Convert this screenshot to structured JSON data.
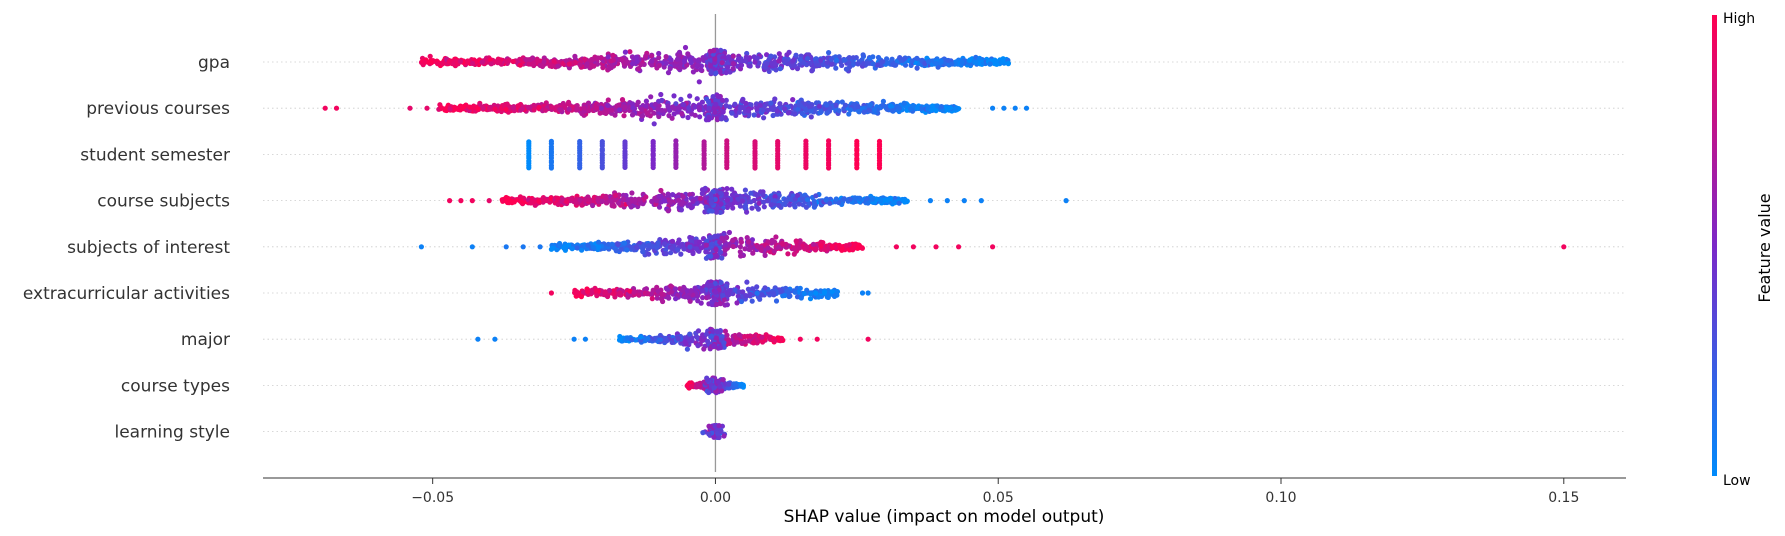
{
  "chart_data": {
    "type": "scatter",
    "subtype": "shap-beeswarm",
    "title": "",
    "xlabel": "SHAP value (impact on model output)",
    "ylabel": "",
    "xlim": [
      -0.08,
      0.161
    ],
    "x_ticks": [
      -0.05,
      0.0,
      0.05,
      0.1,
      0.15
    ],
    "x_tick_labels": [
      "−0.05",
      "0.00",
      "0.05",
      "0.10",
      "0.15"
    ],
    "features": [
      {
        "name": "gpa",
        "range": [
          -0.052,
          0.052
        ],
        "pattern": "high-left",
        "outliers": []
      },
      {
        "name": "previous courses",
        "range": [
          -0.049,
          0.043
        ],
        "pattern": "high-left",
        "outliers": [
          [
            -0.069,
            0.95
          ],
          [
            -0.067,
            0.95
          ],
          [
            -0.054,
            0.9
          ],
          [
            -0.051,
            0.9
          ],
          [
            0.049,
            0.05
          ],
          [
            0.051,
            0.05
          ],
          [
            0.053,
            0.05
          ],
          [
            0.055,
            0.05
          ]
        ]
      },
      {
        "name": "student semester",
        "range": [
          -0.033,
          0.029
        ],
        "pattern": "discrete",
        "levels": [
          [
            -0.033,
            0.0
          ],
          [
            -0.029,
            0.1
          ],
          [
            -0.024,
            0.2
          ],
          [
            -0.02,
            0.3
          ],
          [
            -0.016,
            0.4
          ],
          [
            -0.011,
            0.5
          ],
          [
            -0.007,
            0.6
          ],
          [
            -0.002,
            0.7
          ],
          [
            0.002,
            0.8
          ],
          [
            0.007,
            0.85
          ],
          [
            0.011,
            0.9
          ],
          [
            0.016,
            0.93
          ],
          [
            0.02,
            0.96
          ],
          [
            0.025,
            1.0
          ],
          [
            0.029,
            1.0
          ]
        ],
        "outliers": []
      },
      {
        "name": "course subjects",
        "range": [
          -0.038,
          0.034
        ],
        "pattern": "high-left",
        "outliers": [
          [
            -0.047,
            0.95
          ],
          [
            -0.045,
            0.95
          ],
          [
            -0.043,
            0.95
          ],
          [
            -0.04,
            0.9
          ],
          [
            0.038,
            0.05
          ],
          [
            0.041,
            0.05
          ],
          [
            0.044,
            0.05
          ],
          [
            0.047,
            0.05
          ],
          [
            0.062,
            0.05
          ]
        ]
      },
      {
        "name": "subjects of interest",
        "range": [
          -0.029,
          0.026
        ],
        "pattern": "high-right",
        "outliers": [
          [
            -0.052,
            0.05
          ],
          [
            -0.043,
            0.05
          ],
          [
            -0.037,
            0.1
          ],
          [
            -0.034,
            0.1
          ],
          [
            -0.031,
            0.1
          ],
          [
            0.032,
            0.95
          ],
          [
            0.035,
            0.95
          ],
          [
            0.039,
            0.95
          ],
          [
            0.043,
            0.95
          ],
          [
            0.049,
            0.95
          ],
          [
            0.15,
            0.95
          ]
        ]
      },
      {
        "name": "extracurricular activities",
        "range": [
          -0.025,
          0.022
        ],
        "pattern": "high-left",
        "outliers": [
          [
            -0.029,
            0.95
          ],
          [
            0.026,
            0.05
          ],
          [
            0.027,
            0.05
          ]
        ]
      },
      {
        "name": "major",
        "range": [
          -0.017,
          0.012
        ],
        "pattern": "high-right",
        "outliers": [
          [
            -0.042,
            0.05
          ],
          [
            -0.039,
            0.05
          ],
          [
            -0.025,
            0.05
          ],
          [
            -0.023,
            0.05
          ],
          [
            0.015,
            0.95
          ],
          [
            0.018,
            0.95
          ],
          [
            0.027,
            0.95
          ]
        ]
      },
      {
        "name": "course types",
        "range": [
          -0.005,
          0.005
        ],
        "pattern": "high-left",
        "outliers": []
      },
      {
        "name": "learning style",
        "range": [
          -0.001,
          0.001
        ],
        "pattern": "high-left",
        "outliers": []
      }
    ],
    "colorbar": {
      "label": "Feature value",
      "high_label": "High",
      "low_label": "Low",
      "color_low": "#008bfb",
      "color_mid": "#7c28c8",
      "color_high": "#ff0052"
    },
    "grid": false,
    "zero_line": true
  }
}
